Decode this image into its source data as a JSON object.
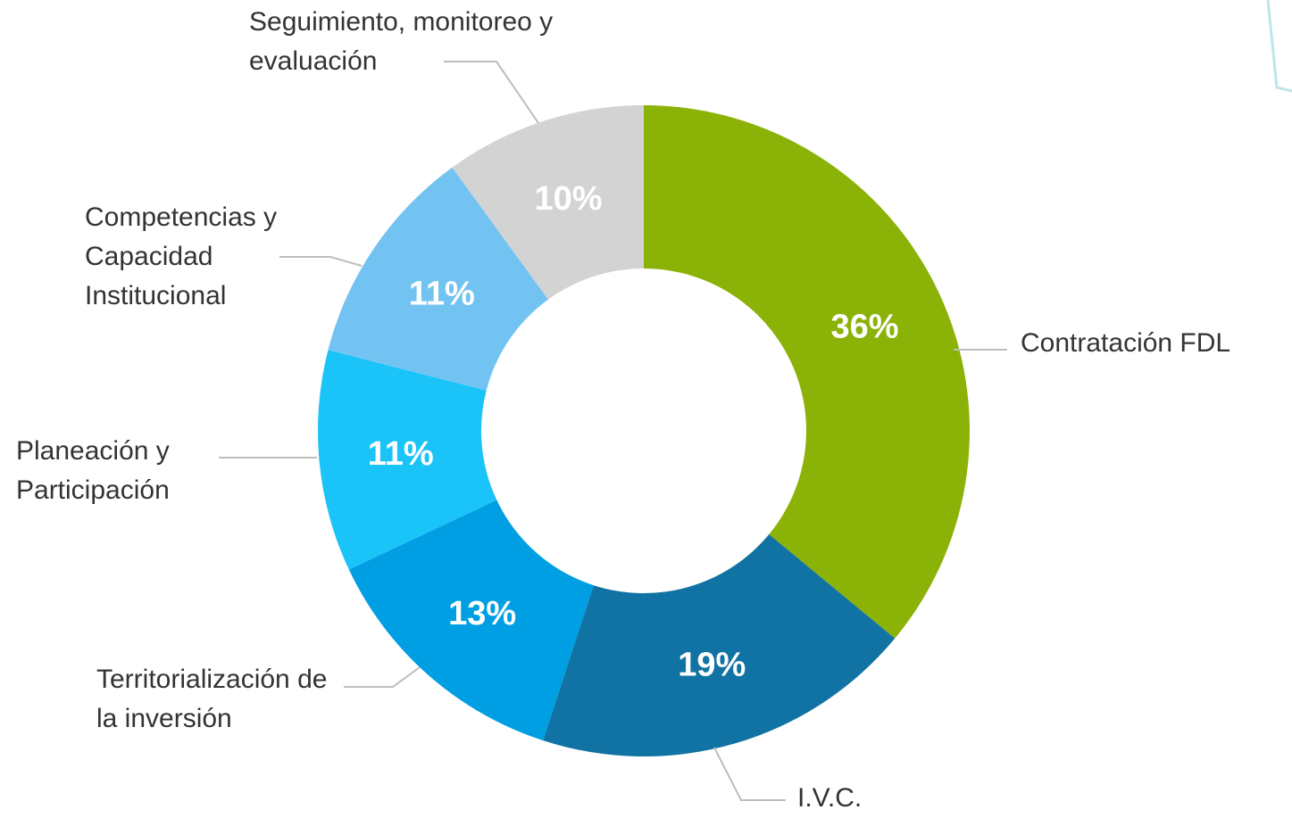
{
  "chart_data": {
    "type": "donut",
    "categories": [
      "Contratación FDL",
      "I.V.C.",
      "Territorialización de la inversión",
      "Planeación y Participación",
      "Competencias y Capacidad Institucional",
      "Seguimiento, monitoreo y evaluación"
    ],
    "values": [
      36,
      19,
      13,
      11,
      11,
      10
    ],
    "value_labels": [
      "36%",
      "19%",
      "13%",
      "11%",
      "11%",
      "10%"
    ],
    "colors": [
      "#8bb206",
      "#1173a3",
      "#009fe3",
      "#1ac3f8",
      "#73c3f2",
      "#d3d3d3"
    ]
  }
}
